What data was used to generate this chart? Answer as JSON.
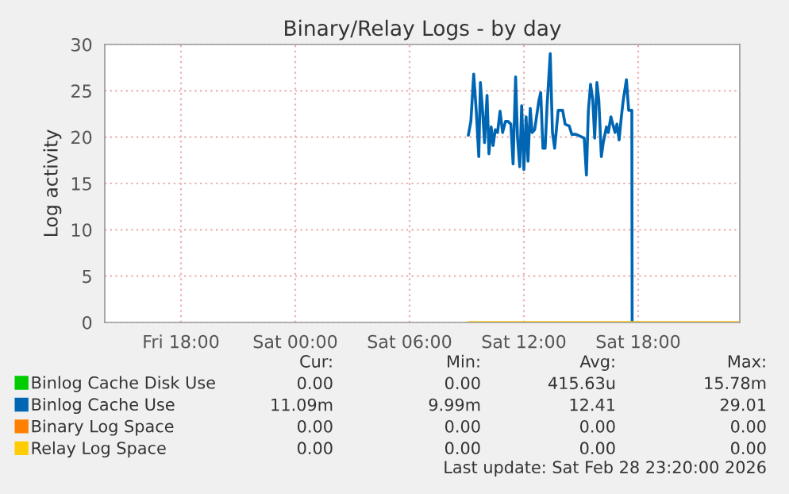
{
  "chart_data": {
    "type": "line",
    "title": "Binary/Relay Logs - by day",
    "ylabel": "Log activity",
    "xlim": [
      "2026-02-27T14:00",
      "2026-02-28T23:20"
    ],
    "xticks": [
      {
        "value": "2026-02-27T18:00",
        "label": "Fri 18:00"
      },
      {
        "value": "2026-02-28T00:00",
        "label": "Sat 00:00"
      },
      {
        "value": "2026-02-28T06:00",
        "label": "Sat 06:00"
      },
      {
        "value": "2026-02-28T12:00",
        "label": "Sat 12:00"
      },
      {
        "value": "2026-02-28T18:00",
        "label": "Sat 18:00"
      }
    ],
    "ylim": [
      0,
      30
    ],
    "yticks": [
      0,
      5,
      10,
      15,
      20,
      25,
      30
    ],
    "grid": true,
    "legend": "bottom left",
    "series": [
      {
        "name": "Binlog Cache Disk Use",
        "color": "#00cc00"
      },
      {
        "name": "Binlog Cache Use",
        "color": "#0066b3",
        "x": [
          "2026-02-28T09:05",
          "2026-02-28T09:13",
          "2026-02-28T09:22",
          "2026-02-28T09:30",
          "2026-02-28T09:38",
          "2026-02-28T09:43",
          "2026-02-28T09:50",
          "2026-02-28T09:56",
          "2026-02-28T10:04",
          "2026-02-28T10:10",
          "2026-02-28T10:17",
          "2026-02-28T10:23",
          "2026-02-28T10:30",
          "2026-02-28T10:37",
          "2026-02-28T10:45",
          "2026-02-28T10:53",
          "2026-02-28T11:02",
          "2026-02-28T11:10",
          "2026-02-28T11:19",
          "2026-02-28T11:26",
          "2026-02-28T11:34",
          "2026-02-28T11:40",
          "2026-02-28T11:47",
          "2026-02-28T11:53",
          "2026-02-28T12:00",
          "2026-02-28T12:07",
          "2026-02-28T12:13",
          "2026-02-28T12:20",
          "2026-02-28T12:26",
          "2026-02-28T12:34",
          "2026-02-28T12:47",
          "2026-02-28T12:53",
          "2026-02-28T13:00",
          "2026-02-28T13:07",
          "2026-02-28T13:13",
          "2026-02-28T13:23",
          "2026-02-28T13:30",
          "2026-02-28T13:37",
          "2026-02-28T13:48",
          "2026-02-28T14:02",
          "2026-02-28T14:10",
          "2026-02-28T14:23",
          "2026-02-28T14:31",
          "2026-02-28T14:44",
          "2026-02-28T15:10",
          "2026-02-28T15:17",
          "2026-02-28T15:23",
          "2026-02-28T15:30",
          "2026-02-28T15:37",
          "2026-02-28T15:43",
          "2026-02-28T15:50",
          "2026-02-28T15:56",
          "2026-02-28T16:04",
          "2026-02-28T16:10",
          "2026-02-28T16:20",
          "2026-02-28T16:26",
          "2026-02-28T16:34",
          "2026-02-28T16:40",
          "2026-02-28T16:47",
          "2026-02-28T16:53",
          "2026-02-28T17:00",
          "2026-02-28T17:07",
          "2026-02-28T17:13",
          "2026-02-28T17:23",
          "2026-02-28T17:30",
          "2026-02-28T17:37",
          "2026-02-28T17:40",
          "2026-02-28T17:41"
        ],
        "values": [
          20.2,
          21.7,
          26.8,
          22.8,
          17.9,
          25.9,
          22.8,
          19.4,
          24.5,
          18.2,
          21.1,
          19.1,
          20.8,
          20.5,
          22.8,
          20.5,
          21.7,
          21.7,
          21.4,
          17.1,
          26.5,
          19.9,
          16.8,
          23.4,
          16.5,
          22.2,
          17.4,
          23.1,
          20.5,
          20.8,
          23.9,
          24.8,
          18.8,
          18.8,
          23.4,
          29.0,
          20.5,
          18.8,
          22.9,
          22.9,
          21.4,
          21.2,
          20.3,
          20.3,
          19.9,
          15.9,
          22.8,
          25.7,
          24.0,
          19.9,
          25.9,
          24.0,
          17.9,
          19.4,
          21.1,
          20.5,
          22.2,
          21.4,
          20.5,
          21.4,
          19.7,
          22.2,
          24.0,
          26.2,
          22.9,
          22.9,
          22.9,
          0
        ]
      },
      {
        "name": "Binary Log Space",
        "color": "#ff8000"
      },
      {
        "name": "Relay Log Space",
        "color": "#ffcc00",
        "x": [
          "2026-02-28T09:05",
          "2026-02-28T23:20"
        ],
        "values": [
          0,
          0
        ]
      }
    ],
    "annotations": [
      "Cur:",
      "Min:",
      "Avg:",
      "Max:",
      "0.00",
      "0.00",
      "415.63u",
      "15.78m",
      "11.09m",
      "9.99m",
      "12.41",
      "29.01",
      "0.00",
      "0.00",
      "0.00",
      "0.00",
      "0.00",
      "0.00",
      "0.00",
      "0.00",
      "Last update: Sat Feb 28 23:20:00 2026"
    ]
  }
}
